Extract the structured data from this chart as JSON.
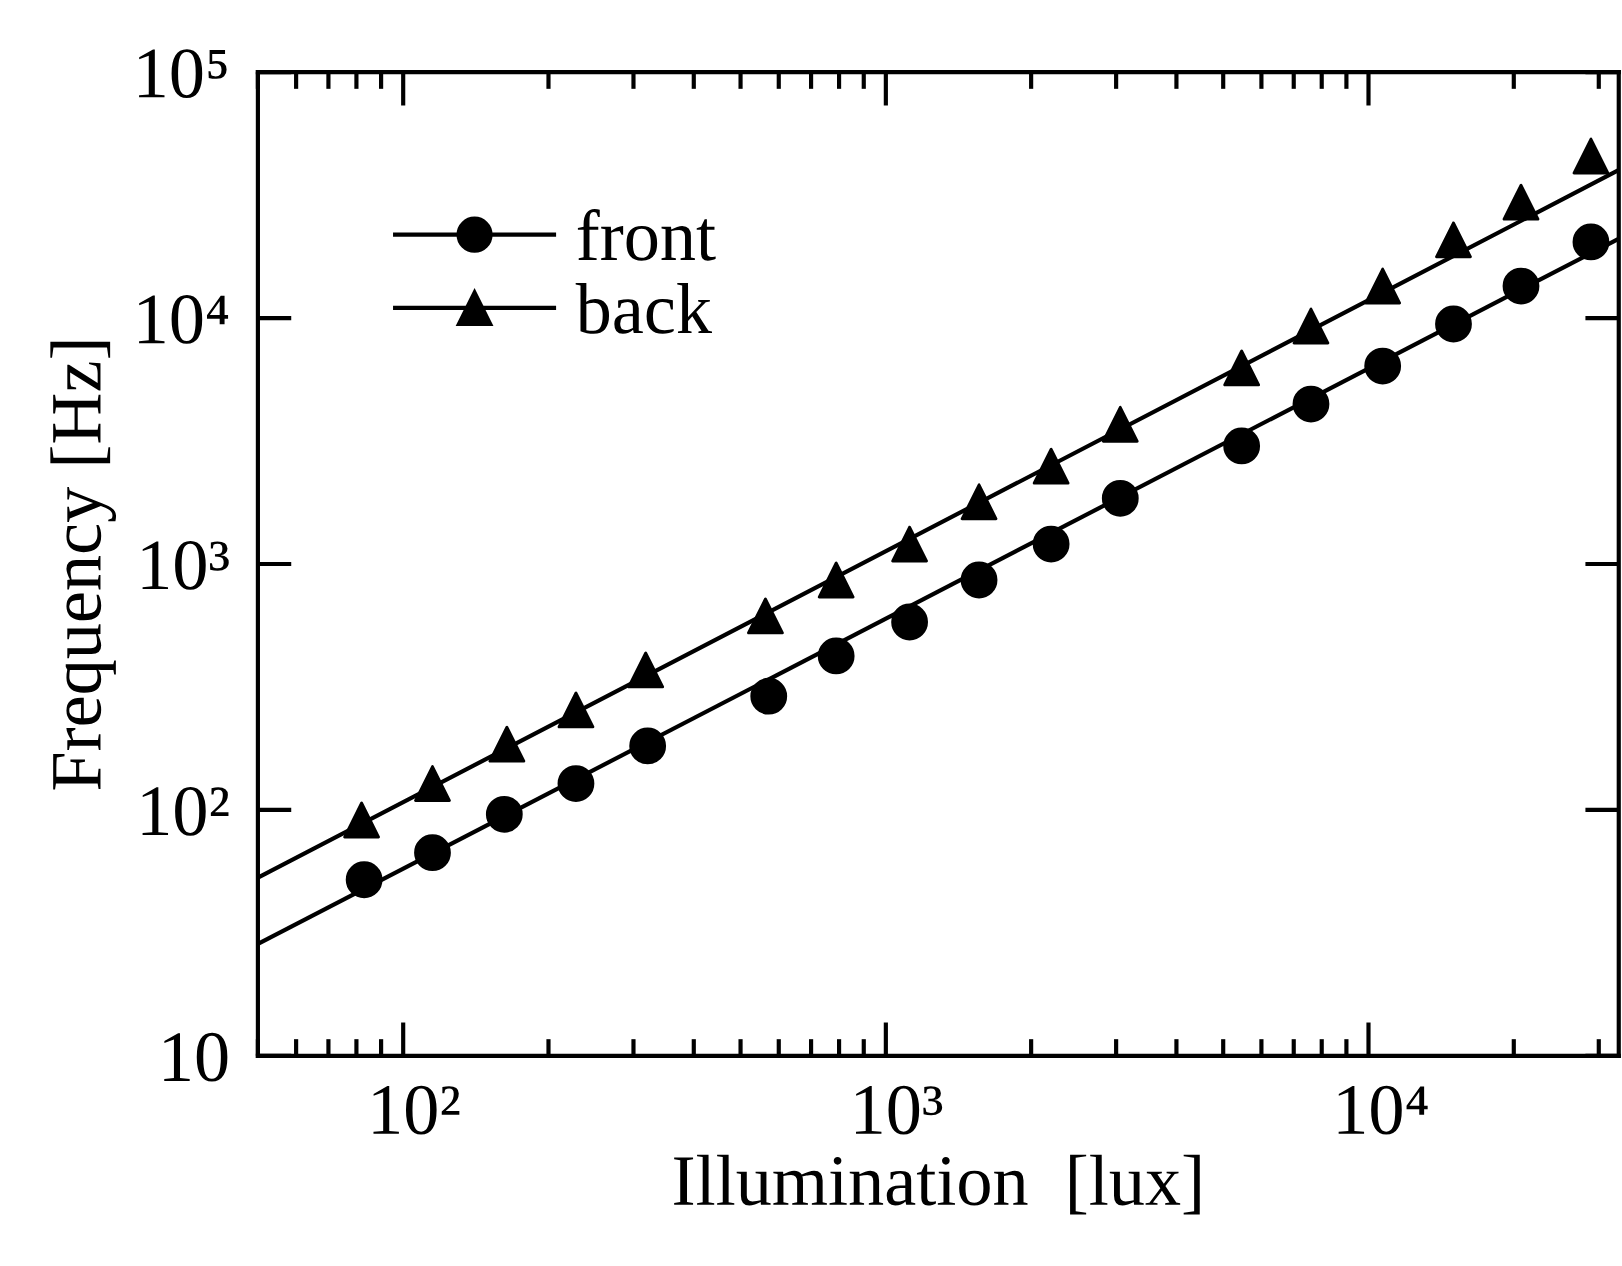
{
  "chart_data": {
    "type": "scatter",
    "xlabel": "Illumination  [lux]",
    "ylabel": "Frequency [Hz]",
    "log": "xy",
    "xlim": [
      50,
      33000
    ],
    "ylim": [
      10,
      100000
    ],
    "xticks": [
      {
        "value": 100,
        "label": "10²"
      },
      {
        "value": 1000,
        "label": "10³"
      },
      {
        "value": 10000,
        "label": "10⁴"
      }
    ],
    "yticks": [
      10,
      {
        "value": 100,
        "label": "10²"
      },
      {
        "value": 1000,
        "label": "10³"
      },
      {
        "value": 10000,
        "label": "10⁴"
      },
      {
        "value": 100000,
        "label": "10⁵"
      }
    ],
    "grid": false,
    "legend": "top left",
    "series": [
      {
        "name": "front",
        "marker": "circle",
        "color": "#000000",
        "x": [
          83,
          115,
          162,
          228,
          321,
          572,
          789,
          1120,
          1560,
          2200,
          3060,
          5460,
          7600,
          10700,
          15000,
          20700,
          28900
        ],
        "values": [
          52,
          67,
          96,
          128,
          182,
          290,
          423,
          581,
          861,
          1205,
          1850,
          3020,
          4470,
          6380,
          9460,
          13500,
          20400
        ]
      },
      {
        "name": "back",
        "marker": "triangle",
        "color": "#000000",
        "x": [
          82,
          115,
          164,
          228,
          318,
          563,
          789,
          1120,
          1560,
          2200,
          3060,
          5460,
          7600,
          10700,
          15000,
          20700,
          28900
        ],
        "values": [
          91,
          128,
          185,
          255,
          371,
          615,
          861,
          1205,
          1790,
          2500,
          3700,
          6270,
          9280,
          13500,
          20800,
          29600,
          45600
        ]
      },
      {
        "type": "line",
        "line_style": "solid",
        "color": "#000000",
        "x": [
          50,
          33000
        ],
        "values": [
          28.5,
          21000
        ]
      },
      {
        "type": "line",
        "line_style": "solid",
        "color": "#000000",
        "x": [
          50,
          33000
        ],
        "values": [
          53,
          40000
        ]
      }
    ]
  }
}
